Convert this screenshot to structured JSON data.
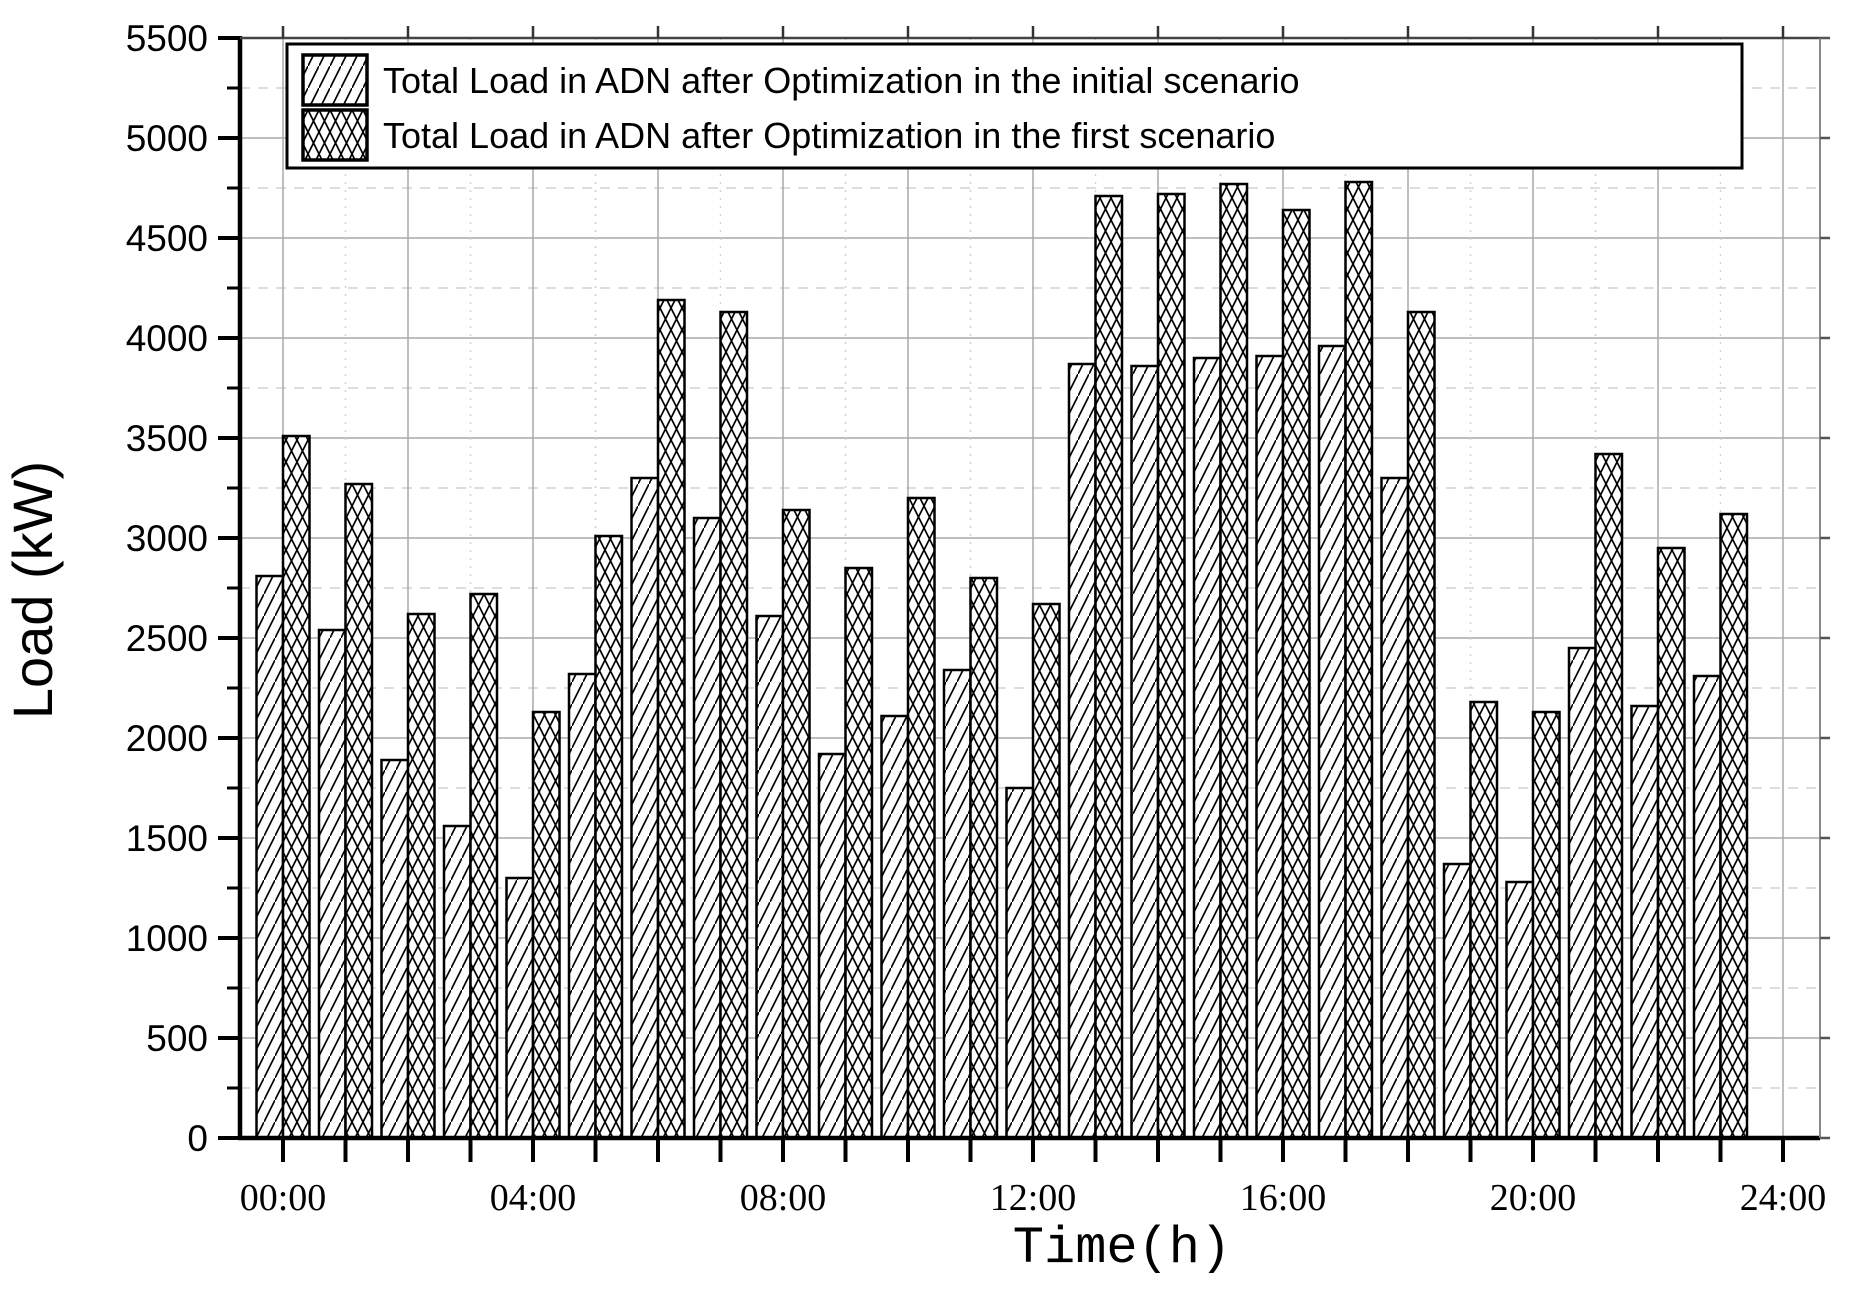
{
  "figure": {
    "ylabel": "Load (kW)",
    "xlabel": "Time(h)"
  },
  "chart_data": {
    "type": "bar",
    "title": "",
    "xlabel": "Time(h)",
    "ylabel": "Load (kW)",
    "ylim": [
      0,
      5500
    ],
    "xlim_hours": [
      0,
      24
    ],
    "grid": {
      "h_major_step": 500,
      "h_minor_step": 250,
      "v_major_hours": 2,
      "v_minor_hours": 1,
      "grid_on": true
    },
    "legend_position": "top-inside",
    "y_ticks": [
      0,
      500,
      1000,
      1500,
      2000,
      2500,
      3000,
      3500,
      4000,
      4500,
      5000,
      5500
    ],
    "x_ticks": [
      {
        "hour": 0,
        "label": "00:00"
      },
      {
        "hour": 4,
        "label": "04:00"
      },
      {
        "hour": 8,
        "label": "08:00"
      },
      {
        "hour": 12,
        "label": "12:00"
      },
      {
        "hour": 16,
        "label": "16:00"
      },
      {
        "hour": 20,
        "label": "20:00"
      },
      {
        "hour": 24,
        "label": "24:00"
      }
    ],
    "categories": [
      "00:00",
      "01:00",
      "02:00",
      "03:00",
      "04:00",
      "05:00",
      "06:00",
      "07:00",
      "08:00",
      "09:00",
      "10:00",
      "11:00",
      "12:00",
      "13:00",
      "14:00",
      "15:00",
      "16:00",
      "17:00",
      "18:00",
      "19:00",
      "20:00",
      "21:00",
      "22:00",
      "23:00"
    ],
    "series": [
      {
        "name": "Total Load in ADN after Optimization in the initial scenario",
        "pattern": "diagonal-hatch",
        "values": [
          2810,
          2540,
          1890,
          1560,
          1300,
          2320,
          3300,
          3100,
          2610,
          1920,
          2110,
          2340,
          1750,
          3870,
          3860,
          3900,
          3910,
          3960,
          3300,
          1370,
          1280,
          2450,
          2160,
          2310
        ]
      },
      {
        "name": "Total Load in ADN after Optimization in the first scenario",
        "pattern": "cross-hatch",
        "values": [
          3510,
          3270,
          2620,
          2720,
          2130,
          3010,
          4190,
          4130,
          3140,
          2850,
          3200,
          2800,
          2670,
          4710,
          4720,
          4770,
          4640,
          4780,
          4130,
          2180,
          2130,
          3420,
          2950,
          3120
        ]
      }
    ]
  },
  "colors": {
    "bar_fill": "#ffffff",
    "bar_stroke": "#000000",
    "grid_major": "#a8a8a8",
    "grid_minor": "#d2d2d2",
    "axis": "#000000",
    "background": "#ffffff"
  }
}
